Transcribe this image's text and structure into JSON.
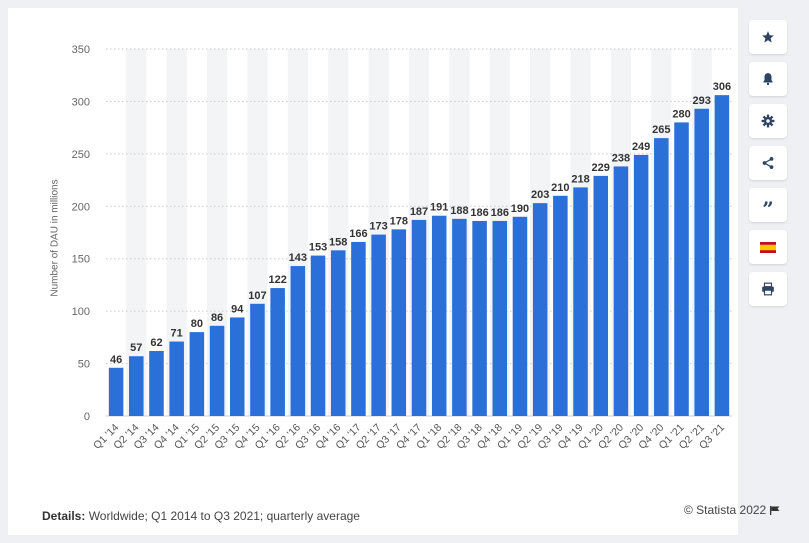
{
  "details": {
    "label": "Details:",
    "text": " Worldwide; Q1 2014 to Q3 2021; quarterly average"
  },
  "copyright": "© Statista 2022",
  "sidebar": {
    "items": [
      {
        "name": "star-icon"
      },
      {
        "name": "bell-icon"
      },
      {
        "name": "gear-icon"
      },
      {
        "name": "share-icon"
      },
      {
        "name": "quote-icon",
        "glyph": "”"
      },
      {
        "name": "spain-flag-icon"
      },
      {
        "name": "print-icon"
      }
    ]
  },
  "colors": {
    "bar": "#2b6fd8",
    "band": "#f3f4f6",
    "icon": "#2d4563"
  },
  "chart_data": {
    "type": "bar",
    "title": "",
    "xlabel": "",
    "ylabel": "Number of DAU in millions",
    "ylim": [
      0,
      350
    ],
    "yticks": [
      0,
      50,
      100,
      150,
      200,
      250,
      300,
      350
    ],
    "grid": true,
    "categories": [
      "Q1 '14",
      "Q2 '14",
      "Q3 '14",
      "Q4 '14",
      "Q1 '15",
      "Q2 '15",
      "Q3 '15",
      "Q4 '15",
      "Q1 '16",
      "Q2 '16",
      "Q3 '16",
      "Q4 '16",
      "Q1 '17",
      "Q2 '17",
      "Q3 '17",
      "Q4 '17",
      "Q1 '18",
      "Q2 '18",
      "Q3 '18",
      "Q4 '18",
      "Q1 '19",
      "Q2 '19",
      "Q3 '19",
      "Q4 '19",
      "Q1 '20",
      "Q2 '20",
      "Q3 '20",
      "Q4 '20",
      "Q1 '21",
      "Q2 '21",
      "Q3 '21"
    ],
    "values": [
      46,
      57,
      62,
      71,
      80,
      86,
      94,
      107,
      122,
      143,
      153,
      158,
      166,
      173,
      178,
      187,
      191,
      188,
      186,
      186,
      190,
      203,
      210,
      218,
      229,
      238,
      249,
      265,
      280,
      293,
      306
    ]
  }
}
